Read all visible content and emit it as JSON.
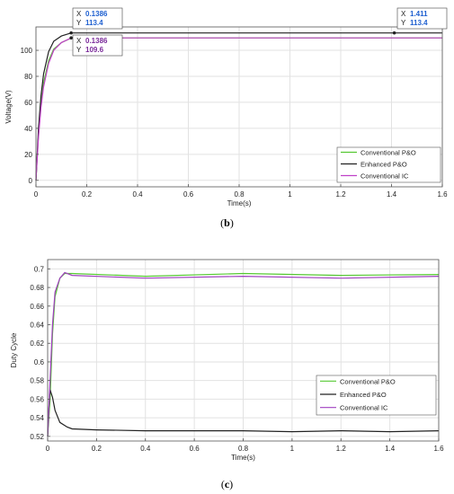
{
  "chart_data": [
    {
      "id": "b",
      "type": "line",
      "caption_letter": "b",
      "xlabel": "Time(s)",
      "ylabel": "Voltage(V)",
      "xlim": [
        0,
        1.6
      ],
      "ylim": [
        -5,
        118
      ],
      "xticks": [
        0,
        0.2,
        0.4,
        0.6,
        0.8,
        1,
        1.2,
        1.4,
        1.6
      ],
      "xtick_labels": [
        "0",
        "0.2",
        "0.4",
        "0.6",
        "0.8",
        "1",
        "1.2",
        "1.4",
        "1.6"
      ],
      "yticks": [
        0,
        20,
        40,
        60,
        80,
        100
      ],
      "ytick_labels": [
        "0",
        "20",
        "40",
        "60",
        "80",
        "100"
      ],
      "grid": true,
      "legend_position": "bottom-right",
      "series": [
        {
          "name": "Conventional  P&O",
          "color": "#55c832",
          "x": [
            0,
            0.01,
            0.02,
            0.03,
            0.05,
            0.07,
            0.1,
            0.14,
            0.2,
            0.6,
            1.0,
            1.6
          ],
          "y": [
            0,
            35,
            58,
            75,
            92,
            101,
            106,
            109.6,
            109.6,
            109.6,
            109.6,
            109.6
          ]
        },
        {
          "name": "Enhanced P&O",
          "color": "#222222",
          "x": [
            0,
            0.01,
            0.02,
            0.03,
            0.05,
            0.07,
            0.1,
            0.1386,
            0.2,
            0.6,
            1.0,
            1.411,
            1.6
          ],
          "y": [
            0,
            40,
            65,
            82,
            99,
            107,
            111,
            113.4,
            113.4,
            113.4,
            113.4,
            113.4,
            113.4
          ]
        },
        {
          "name": "Conventional  IC",
          "color": "#c040c8",
          "x": [
            0,
            0.01,
            0.02,
            0.03,
            0.05,
            0.07,
            0.1,
            0.1386,
            0.2,
            0.6,
            1.0,
            1.6
          ],
          "y": [
            0,
            33,
            56,
            72,
            90,
            100,
            106,
            109.6,
            109.6,
            109.6,
            109.6,
            109.6
          ]
        }
      ],
      "datatips": [
        {
          "x": 0.1386,
          "y": 113.4,
          "x_text": "0.1386",
          "y_text": "113.4",
          "color": "#1f60d0"
        },
        {
          "x": 0.1386,
          "y": 109.6,
          "x_text": "0.1386",
          "y_text": "109.6",
          "color": "#7a2a9a"
        },
        {
          "x": 1.411,
          "y": 113.4,
          "x_text": "1.411",
          "y_text": "113.4",
          "color": "#1f60d0"
        }
      ]
    },
    {
      "id": "c",
      "type": "line",
      "caption_letter": "c",
      "xlabel": "Time(s)",
      "ylabel": "Duty Cycle",
      "xlim": [
        0,
        1.6
      ],
      "ylim": [
        0.515,
        0.71
      ],
      "xticks": [
        0,
        0.2,
        0.4,
        0.6,
        0.8,
        1,
        1.2,
        1.4,
        1.6
      ],
      "xtick_labels": [
        "0",
        "0.2",
        "0.4",
        "0.6",
        "0.8",
        "1",
        "1.2",
        "1.4",
        "1.6"
      ],
      "yticks": [
        0.52,
        0.54,
        0.56,
        0.58,
        0.6,
        0.62,
        0.64,
        0.66,
        0.68,
        0.7
      ],
      "ytick_labels": [
        "0.52",
        "0.54",
        "0.56",
        "0.58",
        "0.6",
        "0.62",
        "0.64",
        "0.66",
        "0.68",
        "0.7"
      ],
      "grid": true,
      "legend_position": "bottom-right",
      "series": [
        {
          "name": "Conventional  P&O",
          "color": "#55c832",
          "x": [
            0,
            0.01,
            0.02,
            0.03,
            0.05,
            0.07,
            0.1,
            0.4,
            0.8,
            1.2,
            1.6
          ],
          "y": [
            0.52,
            0.56,
            0.63,
            0.67,
            0.69,
            0.695,
            0.695,
            0.692,
            0.695,
            0.693,
            0.694
          ]
        },
        {
          "name": "Enhanced P&O",
          "color": "#222222",
          "x": [
            0,
            0.005,
            0.01,
            0.02,
            0.03,
            0.05,
            0.08,
            0.1,
            0.2,
            0.4,
            0.6,
            0.8,
            1.0,
            1.2,
            1.4,
            1.6
          ],
          "y": [
            0.52,
            0.55,
            0.57,
            0.562,
            0.548,
            0.535,
            0.53,
            0.528,
            0.527,
            0.526,
            0.526,
            0.526,
            0.525,
            0.526,
            0.525,
            0.526
          ]
        },
        {
          "name": "Conventional  IC",
          "color": "#a040c0",
          "x": [
            0,
            0.01,
            0.02,
            0.03,
            0.05,
            0.07,
            0.1,
            0.4,
            0.8,
            1.2,
            1.6
          ],
          "y": [
            0.52,
            0.58,
            0.64,
            0.675,
            0.69,
            0.696,
            0.693,
            0.69,
            0.692,
            0.69,
            0.692
          ]
        }
      ]
    }
  ]
}
